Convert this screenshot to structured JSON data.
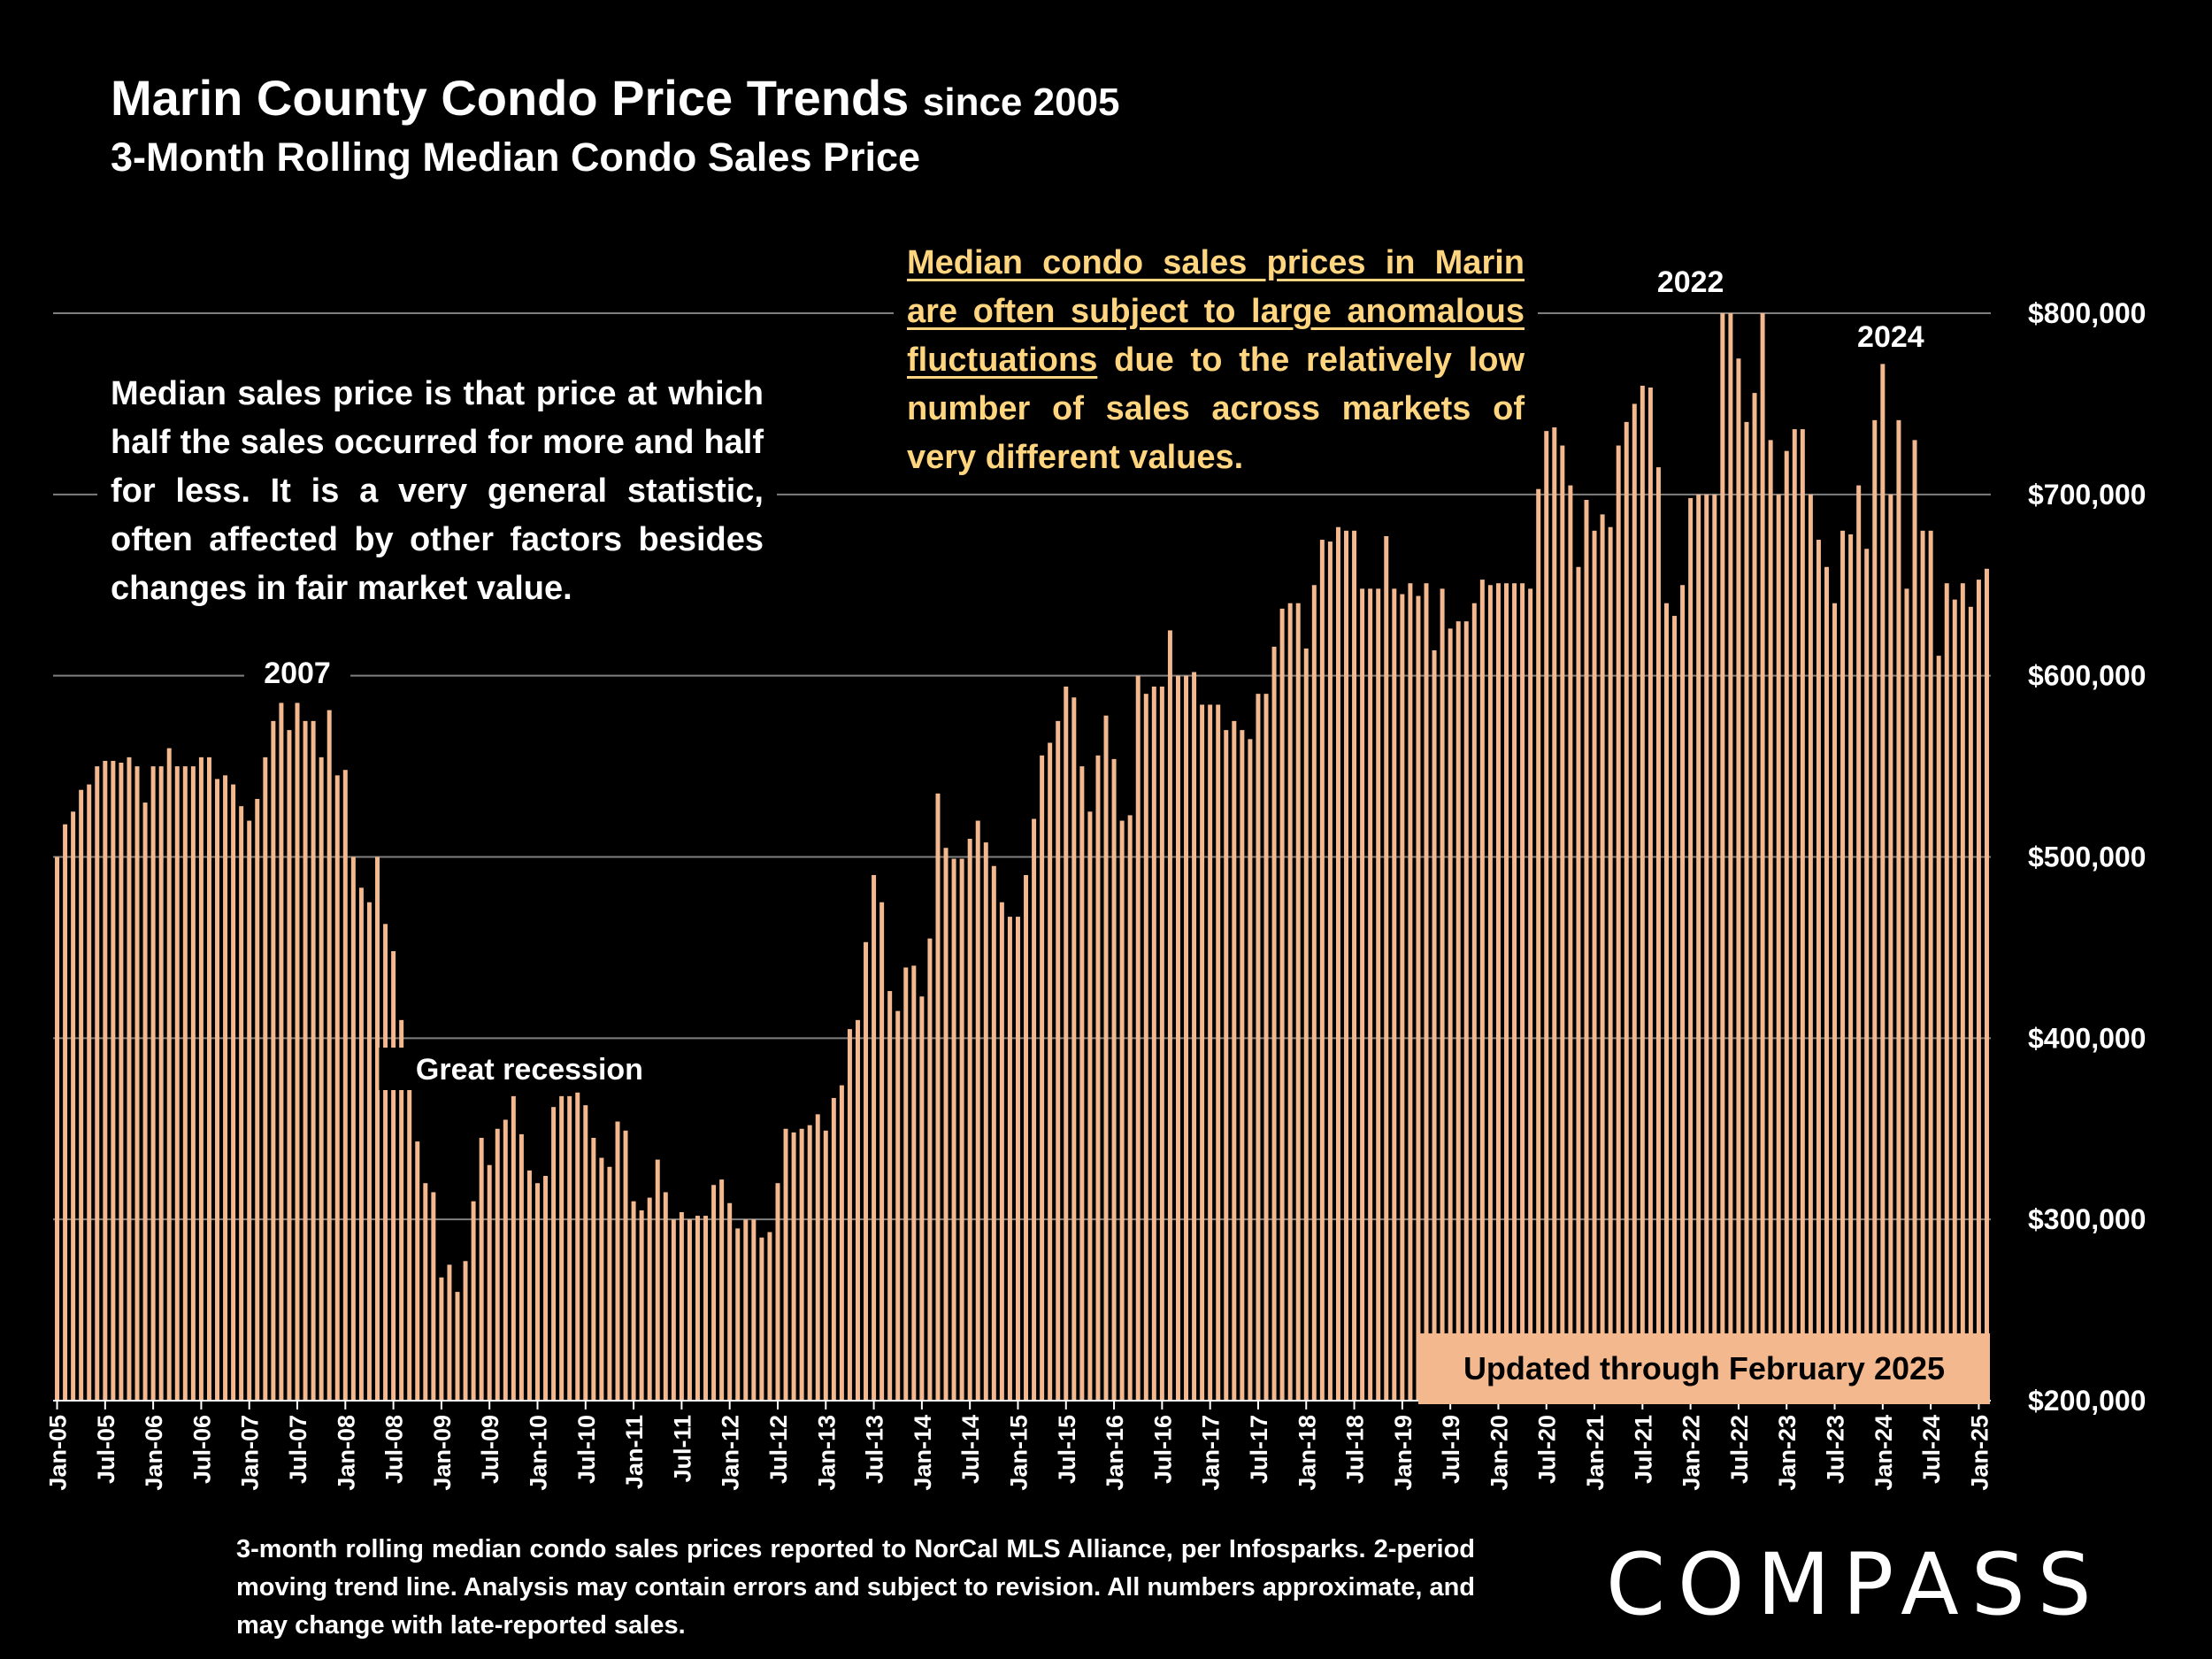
{
  "header": {
    "title_main": "Marin County Condo Price Trends",
    "title_suffix": "since 2005",
    "subtitle": "3-Month Rolling Median Condo Sales Price"
  },
  "notes": {
    "left": "Median sales price is that price at which half the sales occurred for more and half for less. It is a very general statistic, often affected by other factors besides changes in fair market value.",
    "right_underlined": "Median condo sales prices in Marin are often subject to large anomalous fluctuations",
    "right_rest": " due to the relatively low number of sales across markets of very different values.",
    "updated": "Updated through February 2025"
  },
  "footnote": "3-month rolling median condo sales prices reported to NorCal MLS Alliance, per Infosparks. 2-period moving trend line. Analysis may contain errors and subject to revision. All numbers approximate, and may change with late-reported sales.",
  "brand": {
    "logo_text": "COMPASS"
  },
  "colors": {
    "bar": "#f4b88e",
    "background": "#000000",
    "grid": "#7f7f7f",
    "highlight_text": "#ffd57f"
  },
  "chart_data": {
    "type": "bar",
    "title": "Marin County Condo Price Trends since 2005",
    "subtitle": "3-Month Rolling Median Condo Sales Price",
    "xlabel": "",
    "ylabel": "",
    "ylim": [
      200000,
      800000
    ],
    "y_ticks": [
      200000,
      300000,
      400000,
      500000,
      600000,
      700000,
      800000
    ],
    "y_tick_labels": [
      "$200,000",
      "$300,000",
      "$400,000",
      "$500,000",
      "$600,000",
      "$700,000",
      "$800,000"
    ],
    "grid": true,
    "start_month": "Jan-05",
    "x_tick_labels": [
      "Jan-05",
      "Jul-05",
      "Jan-06",
      "Jul-06",
      "Jan-07",
      "Jul-07",
      "Jan-08",
      "Jul-08",
      "Jan-09",
      "Jul-09",
      "Jan-10",
      "Jul-10",
      "Jan-11",
      "Jul-11",
      "Jan-12",
      "Jul-12",
      "Jan-13",
      "Jul-13",
      "Jan-14",
      "Jul-14",
      "Jan-15",
      "Jul-15",
      "Jan-16",
      "Jul-16",
      "Jan-17",
      "Jul-17",
      "Jan-18",
      "Jul-18",
      "Jan-19",
      "Jul-19",
      "Jan-20",
      "Jul-20",
      "Jan-21",
      "Jul-21",
      "Jan-22",
      "Jul-22",
      "Jan-23",
      "Jul-23",
      "Jan-24",
      "Jul-24",
      "Jan-25"
    ],
    "x_tick_every": 6,
    "annotations": [
      {
        "text": "2007",
        "index": 30
      },
      {
        "text": "Great recession",
        "index": 59
      },
      {
        "text": "2022",
        "index": 204
      },
      {
        "text": "2024",
        "index": 229
      }
    ],
    "values": [
      500000,
      518000,
      525000,
      537000,
      540000,
      550000,
      553000,
      553000,
      552000,
      555000,
      550000,
      530000,
      550000,
      550000,
      560000,
      550000,
      550000,
      550000,
      555000,
      555000,
      543000,
      545000,
      540000,
      528000,
      520000,
      532000,
      555000,
      575000,
      585000,
      570000,
      585000,
      575000,
      575000,
      555000,
      581000,
      545000,
      548000,
      500000,
      483000,
      475000,
      500000,
      463000,
      448000,
      410000,
      385000,
      343000,
      320000,
      315000,
      268000,
      275000,
      260000,
      277000,
      310000,
      345000,
      330000,
      350000,
      355000,
      368000,
      347000,
      327000,
      320000,
      324000,
      362000,
      368000,
      368000,
      370000,
      363000,
      345000,
      334000,
      329000,
      354000,
      349000,
      310000,
      305000,
      312000,
      333000,
      315000,
      300000,
      304000,
      300000,
      302000,
      302000,
      319000,
      322000,
      309000,
      295000,
      300000,
      300000,
      290000,
      293000,
      320000,
      350000,
      348000,
      350000,
      352000,
      358000,
      349000,
      367000,
      374000,
      405000,
      410000,
      453000,
      490000,
      475000,
      426000,
      415000,
      439000,
      440000,
      423000,
      455000,
      535000,
      505000,
      499000,
      499000,
      510000,
      520000,
      508000,
      495000,
      475000,
      467000,
      467000,
      490000,
      521000,
      556000,
      563000,
      575000,
      594000,
      588000,
      550000,
      525000,
      556000,
      578000,
      554000,
      520000,
      523000,
      600000,
      590000,
      594000,
      594000,
      625000,
      600000,
      600000,
      602000,
      584000,
      584000,
      584000,
      570000,
      575000,
      570000,
      565000,
      590000,
      590000,
      616000,
      637000,
      640000,
      640000,
      615000,
      650000,
      675000,
      674000,
      682000,
      680000,
      680000,
      648000,
      648000,
      648000,
      677000,
      648000,
      645000,
      651000,
      644000,
      651000,
      614000,
      648000,
      626000,
      630000,
      630000,
      640000,
      653000,
      650000,
      651000,
      651000,
      651000,
      651000,
      648000,
      703000,
      735000,
      737000,
      727000,
      705000,
      660000,
      697000,
      680000,
      689000,
      682000,
      727000,
      740000,
      750000,
      760000,
      759000,
      715000,
      640000,
      633000,
      650000,
      698000,
      700000,
      700000,
      700000,
      800000,
      800000,
      775000,
      740000,
      756000,
      800000,
      730000,
      700000,
      724000,
      736000,
      736000,
      700000,
      675000,
      660000,
      640000,
      680000,
      678000,
      705000,
      670000,
      741000,
      772000,
      700000,
      741000,
      648000,
      730000,
      680000,
      680000,
      611000,
      651000,
      642000,
      651000,
      638000,
      653000,
      659000
    ]
  }
}
